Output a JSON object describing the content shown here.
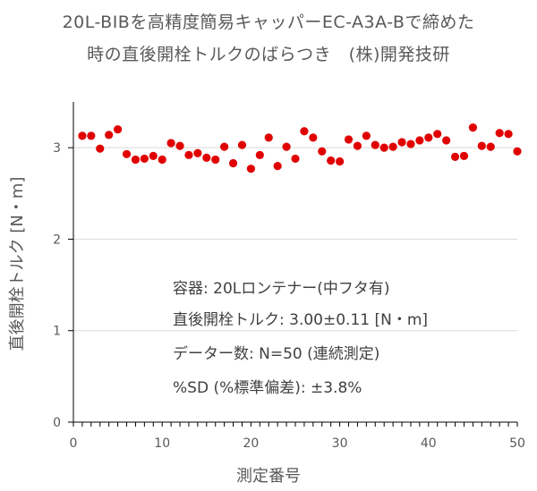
{
  "chart_data": {
    "type": "scatter",
    "title_line1": "20L-BIBを高精度簡易キャッパーEC-A3A-Bで締めた",
    "title_line2": "時の直後開栓トルクのばらつき　(株)開発技研",
    "xlabel": "測定番号",
    "ylabel": "直後開栓トルク [N・m]",
    "xlim": [
      0,
      50
    ],
    "ylim": [
      0,
      3.5
    ],
    "xticks": [
      0,
      10,
      20,
      30,
      40,
      50
    ],
    "yticks": [
      0,
      1,
      2,
      3
    ],
    "grid": "horizontal",
    "marker_color": "#e00000",
    "x": [
      1,
      2,
      3,
      4,
      5,
      6,
      7,
      8,
      9,
      10,
      11,
      12,
      13,
      14,
      15,
      16,
      17,
      18,
      19,
      20,
      21,
      22,
      23,
      24,
      25,
      26,
      27,
      28,
      29,
      30,
      31,
      32,
      33,
      34,
      35,
      36,
      37,
      38,
      39,
      40,
      41,
      42,
      43,
      44,
      45,
      46,
      47,
      48,
      49,
      50
    ],
    "y": [
      3.13,
      3.13,
      2.99,
      3.14,
      3.2,
      2.93,
      2.87,
      2.88,
      2.91,
      2.87,
      3.05,
      3.02,
      2.92,
      2.94,
      2.89,
      2.87,
      3.01,
      2.83,
      3.03,
      2.77,
      2.92,
      3.11,
      2.8,
      3.01,
      2.88,
      3.18,
      3.11,
      2.96,
      2.86,
      2.85,
      3.09,
      3.02,
      3.13,
      3.03,
      3.0,
      3.01,
      3.06,
      3.04,
      3.08,
      3.11,
      3.15,
      3.08,
      2.9,
      2.91,
      3.22,
      3.02,
      3.01,
      3.16,
      3.15,
      2.96
    ],
    "annotations": [
      "容器: 20Lロンテナー(中フタ有)",
      "直後開栓トルク: 3.00±0.11 [N・m]",
      "データー数: N=50 (連続測定)",
      "%SD (%標準偏差): ±3.8%"
    ]
  }
}
